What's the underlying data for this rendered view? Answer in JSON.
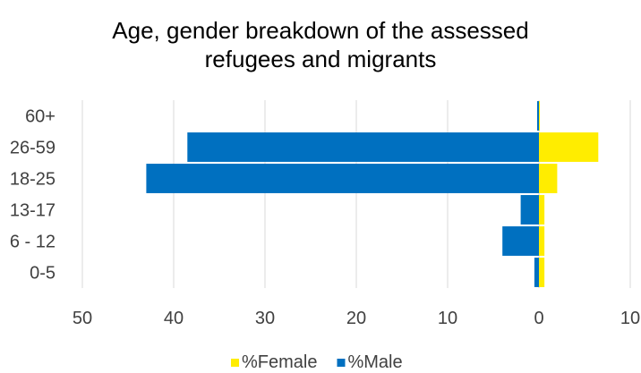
{
  "chart_data": {
    "type": "bar",
    "orientation": "horizontal",
    "title": "Age, gender breakdown of the assessed refugees and migrants",
    "title_lines": [
      "Age, gender breakdown of the assessed",
      "refugees and migrants"
    ],
    "categories": [
      "0-5",
      "6 - 12",
      "13-17",
      "18-25",
      "26-59",
      "60+"
    ],
    "series": [
      {
        "name": "%Female",
        "values": [
          0.6,
          0.6,
          0.6,
          2.0,
          6.5,
          0.1
        ],
        "color": "#FFED00"
      },
      {
        "name": "%Male",
        "values": [
          -0.5,
          -4.0,
          -2.0,
          -43.0,
          -38.5,
          -0.2
        ],
        "color": "#0070C0"
      }
    ],
    "x_tick_labels": [
      "50",
      "40",
      "30",
      "20",
      "10",
      "0",
      "10"
    ],
    "x_tick_values": [
      -50,
      -40,
      -30,
      -20,
      -10,
      0,
      10
    ],
    "xlim": [
      -50,
      10
    ],
    "grid": true,
    "legend_position": "bottom"
  }
}
